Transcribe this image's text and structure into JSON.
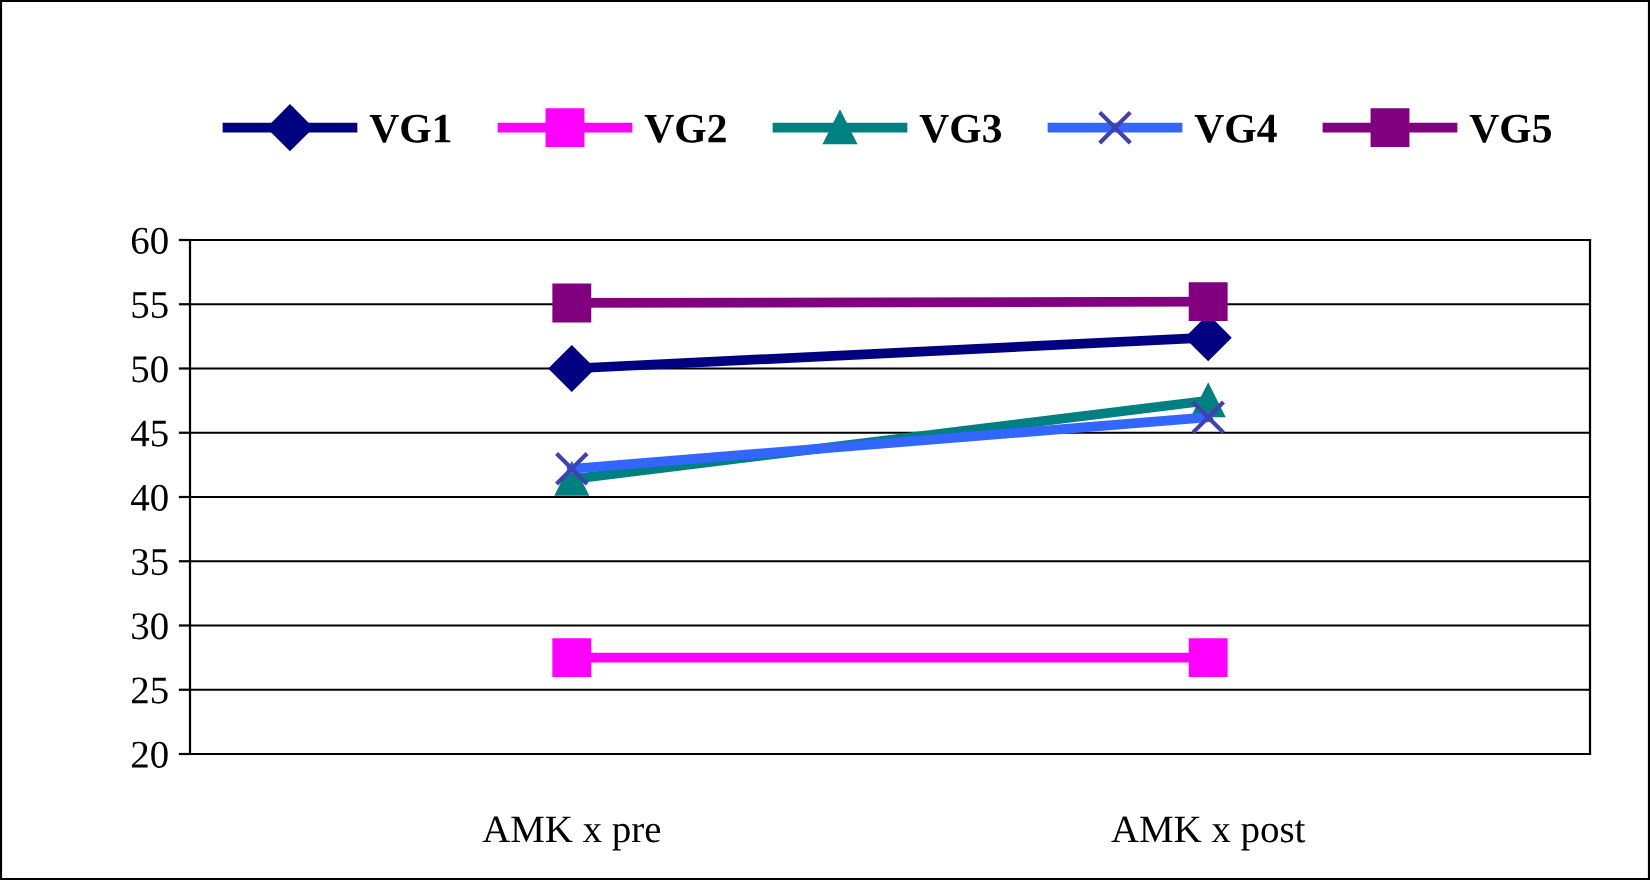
{
  "chart_data": {
    "type": "line",
    "categories": [
      "AMK x pre",
      "AMK x post"
    ],
    "series": [
      {
        "name": "VG1",
        "color": "#000080",
        "marker": "diamond",
        "values": [
          50,
          52.4
        ]
      },
      {
        "name": "VG2",
        "color": "#ff00ff",
        "marker": "square",
        "values": [
          27.5,
          27.5
        ]
      },
      {
        "name": "VG3",
        "color": "#008080",
        "marker": "triangle",
        "values": [
          41.4,
          47.5
        ]
      },
      {
        "name": "VG4",
        "color": "#3366ff",
        "marker": "cross",
        "values": [
          42.2,
          46.2
        ]
      },
      {
        "name": "VG5",
        "color": "#800080",
        "marker": "square",
        "values": [
          55.1,
          55.2
        ]
      }
    ],
    "ylim": [
      20,
      60
    ],
    "yticks": [
      20,
      25,
      30,
      35,
      40,
      45,
      50,
      55,
      60
    ],
    "grid": "y",
    "legend": "top"
  }
}
